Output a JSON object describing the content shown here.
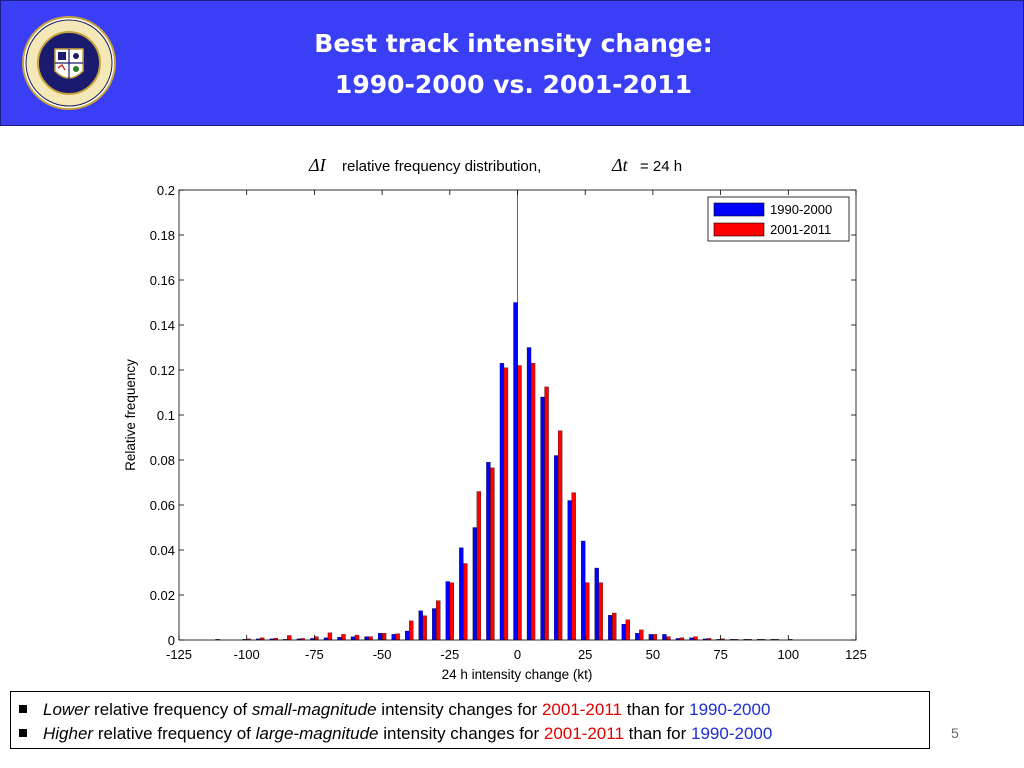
{
  "header": {
    "title_line1": "Best track intensity change:",
    "title_line2": "1990-2000 vs. 2001-2011",
    "logo_text_top": "NAVAL RESEARCH LABORATORY",
    "logo_text_bottom": "MONTEREY, CA"
  },
  "colors": {
    "header_bg": "#3a3ff5",
    "series1": "#0000ff",
    "series2": "#ff0000"
  },
  "chart_data": {
    "type": "bar",
    "title_symbol1": "ΔI",
    "title_text": "relative frequency distribution,",
    "title_symbol2": "Δt",
    "title_suffix": "= 24 h",
    "xlabel": "24 h intensity change (kt)",
    "ylabel": "Relative frequency",
    "xlim": [
      -125,
      125
    ],
    "ylim": [
      0,
      0.2
    ],
    "xticks": [
      "-125",
      "-100",
      "-75",
      "-50",
      "-25",
      "0",
      "25",
      "50",
      "75",
      "100",
      "125"
    ],
    "yticks": [
      "0",
      "0.02",
      "0.04",
      "0.06",
      "0.08",
      "0.1",
      "0.12",
      "0.14",
      "0.16",
      "0.18",
      "0.2"
    ],
    "legend_position": "top-right",
    "x": [
      -110,
      -105,
      -100,
      -95,
      -90,
      -85,
      -80,
      -75,
      -70,
      -65,
      -60,
      -55,
      -50,
      -45,
      -40,
      -35,
      -30,
      -25,
      -20,
      -15,
      -10,
      -5,
      0,
      5,
      10,
      15,
      20,
      25,
      30,
      35,
      40,
      45,
      50,
      55,
      60,
      65,
      70,
      75,
      80,
      85,
      90,
      95,
      100
    ],
    "series": [
      {
        "name": "1990-2000",
        "color": "#0000ff",
        "values": [
          0.0003,
          0,
          0.0003,
          0.0005,
          0.0005,
          0.0003,
          0.0005,
          0.0007,
          0.001,
          0.0012,
          0.0015,
          0.0015,
          0.003,
          0.0025,
          0.004,
          0.013,
          0.014,
          0.026,
          0.041,
          0.05,
          0.079,
          0.123,
          0.15,
          0.13,
          0.108,
          0.082,
          0.062,
          0.044,
          0.032,
          0.011,
          0.007,
          0.003,
          0.0025,
          0.0025,
          0.0007,
          0.001,
          0.0005,
          0.0003,
          0.0003,
          0.0003,
          0.0003,
          0.0003,
          0
        ]
      },
      {
        "name": "2001-2011",
        "color": "#ff0000",
        "values": [
          0,
          0,
          0.0005,
          0.001,
          0.0008,
          0.002,
          0.0007,
          0.0015,
          0.0032,
          0.0025,
          0.0022,
          0.0015,
          0.003,
          0.0028,
          0.0085,
          0.0108,
          0.0175,
          0.0255,
          0.034,
          0.066,
          0.0765,
          0.121,
          0.122,
          0.123,
          0.1125,
          0.093,
          0.0655,
          0.0255,
          0.0255,
          0.012,
          0.009,
          0.0045,
          0.0025,
          0.0015,
          0.001,
          0.0015,
          0.0007,
          0.0005,
          0.0003,
          0.0003,
          0.0003,
          0.0003,
          0.0003
        ]
      }
    ]
  },
  "notes": [
    {
      "b1": "Lower",
      "t1": " relative frequency of ",
      "b2": "small-magnitude",
      "t2": " intensity changes for ",
      "r": "2001-2011",
      "t3": " than for ",
      "bl": "1990-2000"
    },
    {
      "b1": "Higher",
      "t1": " relative frequency of ",
      "b2": "large-magnitude",
      "t2": " intensity changes for ",
      "r": "2001-2011",
      "t3": " than for ",
      "bl": "1990-2000"
    }
  ],
  "page_number": "5"
}
